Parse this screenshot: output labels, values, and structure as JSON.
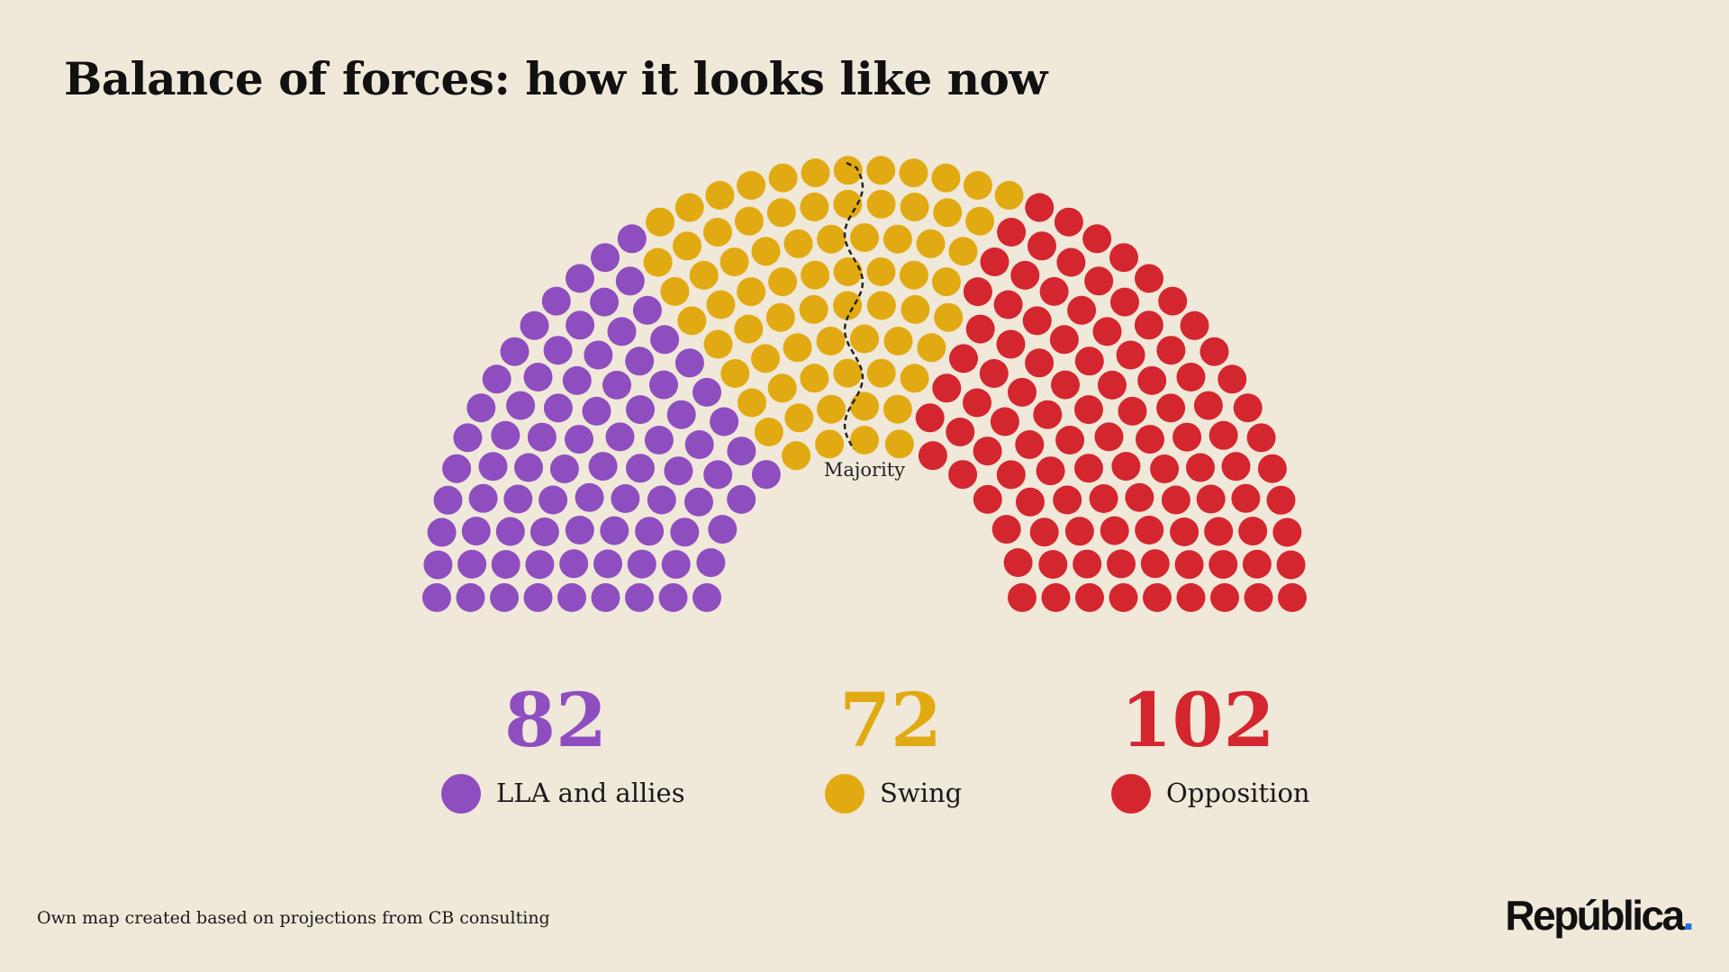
{
  "header": {
    "title": "Balance of forces: how it looks like now"
  },
  "chart_data": {
    "type": "parliament",
    "title": "Balance of forces: how it looks like now",
    "total_seats": 256,
    "majority_label": "Majority",
    "series": [
      {
        "name": "LLA and allies",
        "value": 82,
        "color": "#8e4ebf"
      },
      {
        "name": "Swing",
        "value": 72,
        "color": "#e2aa12"
      },
      {
        "name": "Opposition",
        "value": 102,
        "color": "#d4262f"
      }
    ]
  },
  "legend": {
    "items": [
      {
        "count": "82",
        "label": "LLA and allies",
        "color": "#8e4ebf"
      },
      {
        "count": "72",
        "label": "Swing",
        "color": "#e2aa12"
      },
      {
        "count": "102",
        "label": "Opposition",
        "color": "#d4262f"
      }
    ]
  },
  "footer": {
    "source": "Own map created based on projections from CB consulting",
    "logo_text": "República",
    "logo_dot": "."
  }
}
